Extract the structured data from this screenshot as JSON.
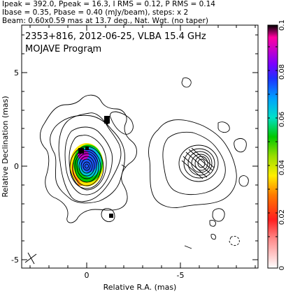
{
  "header": {
    "line1": "Ipeak = 392.0, Ppeak = 16.3, I RMS = 0.12, P RMS = 0.14",
    "line2": "Ibase = 0.35, Pbase = 0.40 (mJy/beam), steps: x 2",
    "line3": "Beam: 0.60x0.59 mas at 13.7 deg., Nat. Wgt. (no taper)"
  },
  "panel": {
    "title": "2353+816, 2012-06-25, VLBA 15.4 GHz",
    "subtitle": "MOJAVE Program"
  },
  "axes": {
    "xlabel": "Relative R.A. (mas)",
    "ylabel": "Relative Declination (mas)",
    "x_ticks": [
      "0",
      "-5"
    ],
    "y_ticks": [
      "5",
      "0",
      "-5"
    ]
  },
  "colorbar": {
    "ticks": [
      "0.1",
      "0.08",
      "0.06",
      "0.04",
      "0.02",
      "0"
    ]
  },
  "colors": {
    "contour": "#000000",
    "frame": "#000000"
  }
}
